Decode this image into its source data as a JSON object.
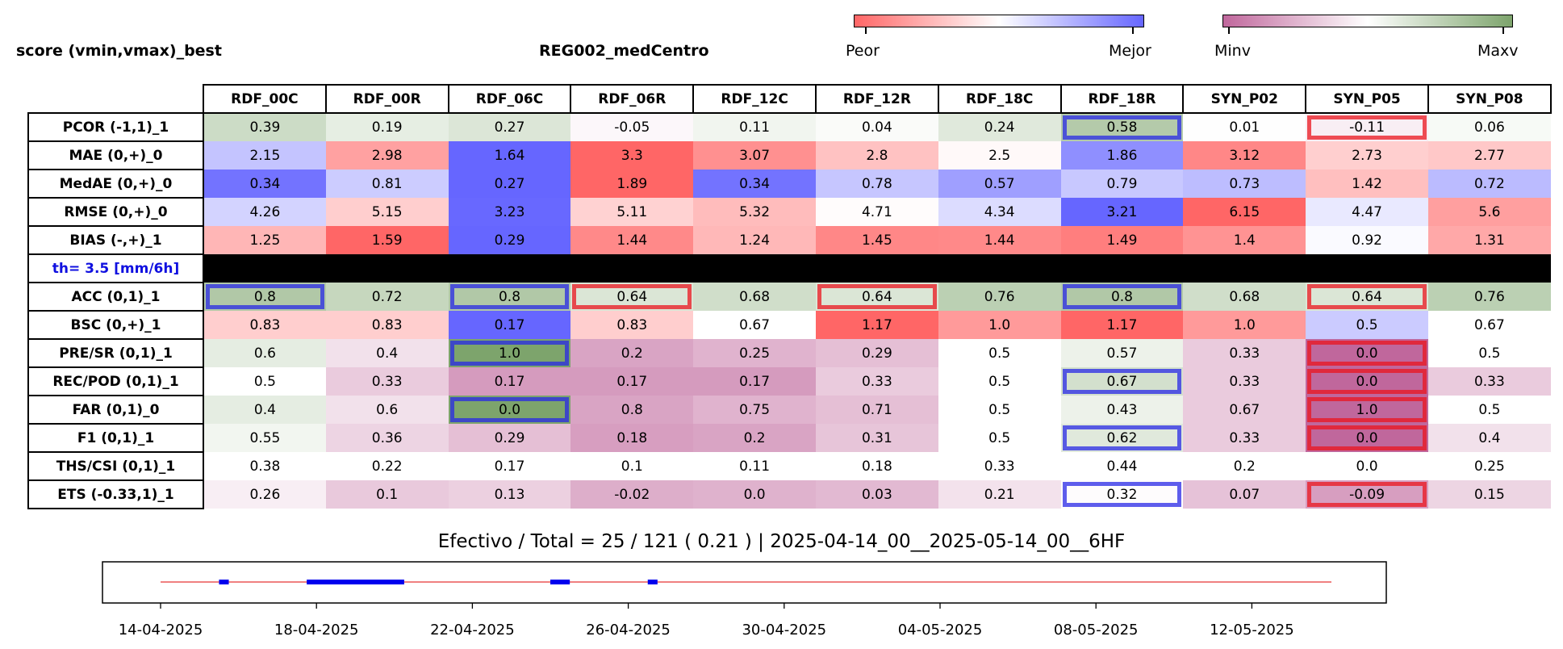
{
  "header": {
    "score_title": "score (vmin,vmax)_best",
    "region_title": "REG002_medCentro",
    "colorbar1": {
      "left_label": "Peor",
      "right_label": "Mejor"
    },
    "colorbar2": {
      "left_label": "Minv",
      "right_label": "Maxv"
    }
  },
  "colors": {
    "worse": "#ff6666",
    "better": "#6666ff",
    "minv": "#c0679c",
    "maxv": "#7da46c",
    "highlight_best": "#2828e6",
    "highlight_worst": "#eb141e"
  },
  "chart_data": {
    "type": "table",
    "columns": [
      "RDF_00C",
      "RDF_00R",
      "RDF_06C",
      "RDF_06R",
      "RDF_12C",
      "RDF_12R",
      "RDF_18C",
      "RDF_18R",
      "SYN_P02",
      "SYN_P05",
      "SYN_P08"
    ],
    "threshold_label": "th= 3.5 [mm/6h]",
    "rows": [
      {
        "label": "PCOR (-1,1)_1",
        "scale": "green",
        "values": [
          "0.39",
          "0.19",
          "0.27",
          "-0.05",
          "0.11",
          "0.04",
          "0.24",
          "0.58",
          "0.01",
          "-0.11",
          "0.06"
        ],
        "best": [
          7
        ],
        "worst": [
          9
        ]
      },
      {
        "label": "MAE (0,+)_0",
        "scale": "redblue",
        "values": [
          "2.15",
          "2.98",
          "1.64",
          "3.3",
          "3.07",
          "2.8",
          "2.5",
          "1.86",
          "3.12",
          "2.73",
          "2.77"
        ],
        "best": [],
        "worst": []
      },
      {
        "label": "MedAE (0,+)_0",
        "scale": "redblue",
        "values": [
          "0.34",
          "0.81",
          "0.27",
          "1.89",
          "0.34",
          "0.78",
          "0.57",
          "0.79",
          "0.73",
          "1.42",
          "0.72"
        ],
        "best": [],
        "worst": []
      },
      {
        "label": "RMSE (0,+)_0",
        "scale": "redblue",
        "values": [
          "4.26",
          "5.15",
          "3.23",
          "5.11",
          "5.32",
          "4.71",
          "4.34",
          "3.21",
          "6.15",
          "4.47",
          "5.6"
        ],
        "best": [],
        "worst": []
      },
      {
        "label": "BIAS (-,+)_1",
        "scale": "redblue",
        "values": [
          "1.25",
          "1.59",
          "0.29",
          "1.44",
          "1.24",
          "1.45",
          "1.44",
          "1.49",
          "1.4",
          "0.92",
          "1.31"
        ],
        "best": [],
        "worst": []
      },
      {
        "label": "ACC (0,1)_1",
        "scale": "green",
        "values": [
          "0.8",
          "0.72",
          "0.8",
          "0.64",
          "0.68",
          "0.64",
          "0.76",
          "0.8",
          "0.68",
          "0.64",
          "0.76"
        ],
        "best": [
          0,
          2,
          7
        ],
        "worst": [
          3,
          5,
          9
        ]
      },
      {
        "label": "BSC (0,+)_1",
        "scale": "redblue",
        "values": [
          "0.83",
          "0.83",
          "0.17",
          "0.83",
          "0.67",
          "1.17",
          "1.0",
          "1.17",
          "1.0",
          "0.5",
          "0.67"
        ],
        "best": [],
        "worst": []
      },
      {
        "label": "PRE/SR (0,1)_1",
        "scale": "green",
        "values": [
          "0.6",
          "0.4",
          "1.0",
          "0.2",
          "0.25",
          "0.29",
          "0.5",
          "0.57",
          "0.33",
          "0.0",
          "0.5"
        ],
        "best": [
          2
        ],
        "worst": [
          9
        ]
      },
      {
        "label": "REC/POD (0,1)_1",
        "scale": "green",
        "values": [
          "0.5",
          "0.33",
          "0.17",
          "0.17",
          "0.17",
          "0.33",
          "0.5",
          "0.67",
          "0.33",
          "0.0",
          "0.33"
        ],
        "best": [
          7
        ],
        "worst": [
          9
        ]
      },
      {
        "label": "FAR (0,1)_0",
        "scale": "green_inv",
        "values": [
          "0.4",
          "0.6",
          "0.0",
          "0.8",
          "0.75",
          "0.71",
          "0.5",
          "0.43",
          "0.67",
          "1.0",
          "0.5"
        ],
        "best": [
          2
        ],
        "worst": [
          9
        ]
      },
      {
        "label": "F1 (0,1)_1",
        "scale": "green",
        "values": [
          "0.55",
          "0.36",
          "0.29",
          "0.18",
          "0.2",
          "0.31",
          "0.5",
          "0.62",
          "0.33",
          "0.0",
          "0.4"
        ],
        "best": [
          7
        ],
        "worst": [
          9
        ]
      },
      {
        "label": "THS/CSI (0,1)_1",
        "scale": "none",
        "values": [
          "0.38",
          "0.22",
          "0.17",
          "0.1",
          "0.11",
          "0.18",
          "0.33",
          "0.44",
          "0.2",
          "0.0",
          "0.25"
        ],
        "best": [],
        "worst": []
      },
      {
        "label": "ETS (-0.33,1)_1",
        "scale": "green_ets",
        "values": [
          "0.26",
          "0.1",
          "0.13",
          "-0.02",
          "0.0",
          "0.03",
          "0.21",
          "0.32",
          "0.07",
          "-0.09",
          "0.15"
        ],
        "best": [
          7
        ],
        "worst": [
          9
        ]
      }
    ],
    "threshold_after_row": 4
  },
  "timeline": {
    "title": "Efectivo / Total  =  25 / 121 ( 0.21 ) | 2025-04-14_00__2025-05-14_00__6HF",
    "x_start": "2025-04-14",
    "x_end": "2025-05-14",
    "tick_labels": [
      "14-04-2025",
      "18-04-2025",
      "22-04-2025",
      "26-04-2025",
      "30-04-2025",
      "04-05-2025",
      "08-05-2025",
      "12-05-2025"
    ],
    "tick_dates": [
      "2025-04-14",
      "2025-04-18",
      "2025-04-22",
      "2025-04-26",
      "2025-04-30",
      "2025-05-04",
      "2025-05-08",
      "2025-05-12"
    ],
    "segments": [
      {
        "start": "2025-04-15T12:00",
        "end": "2025-04-15T18:00"
      },
      {
        "start": "2025-04-17T18:00",
        "end": "2025-04-20T06:00"
      },
      {
        "start": "2025-04-24T00:00",
        "end": "2025-04-24T12:00"
      },
      {
        "start": "2025-04-26T12:00",
        "end": "2025-04-26T18:00"
      }
    ],
    "line_color": "#e00000",
    "segment_color": "#0000ee"
  }
}
